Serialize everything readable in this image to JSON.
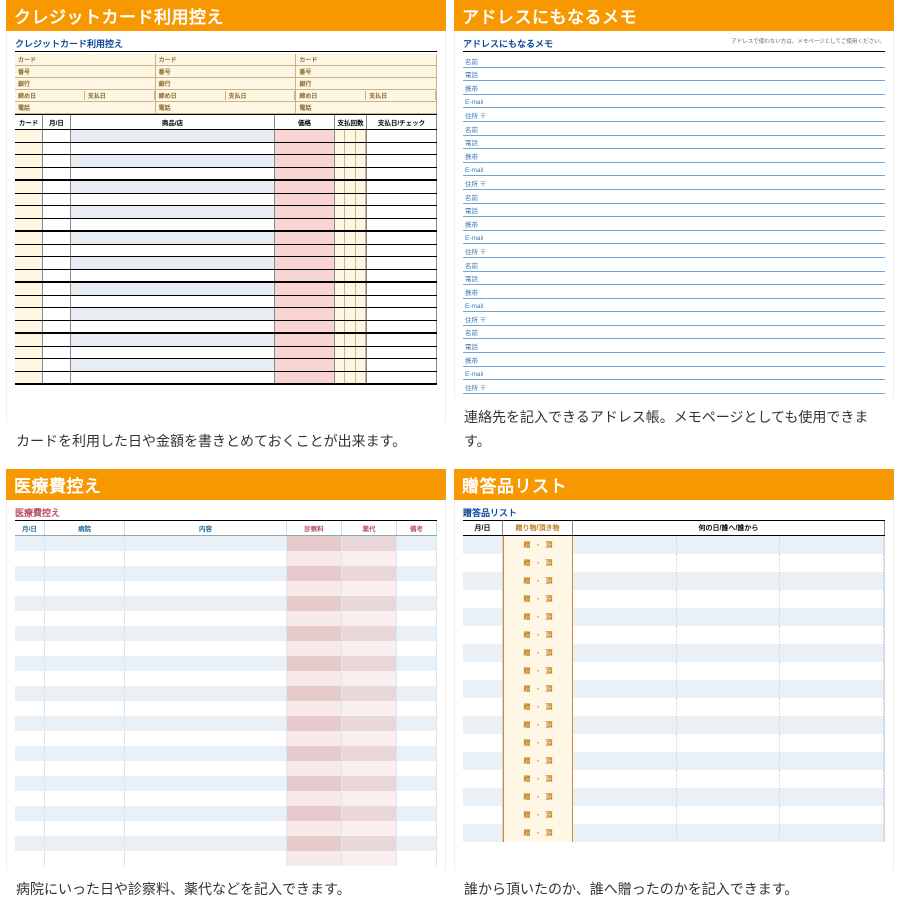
{
  "colors": {
    "accent": "#f79800",
    "blue": "#0a4a9a",
    "lineBlue": "#6fa8d8",
    "cream": "#fdf6e3",
    "ltblue": "#e8edf3",
    "pink": "#f8d5d3"
  },
  "panels": [
    {
      "title": "クレジットカード利用控え",
      "innerTitle": "クレジットカード利用控え",
      "topRows": [
        "カード",
        "番号",
        "銀行",
        "締め日　　支払日",
        "電話"
      ],
      "columns": [
        "カード",
        "月/日",
        "商品/店",
        "価格",
        "支払回数",
        "支払日/チェック"
      ],
      "rowCount": 20,
      "caption": "カードを利用した日や金額を書きとめておくことが出来ます。"
    },
    {
      "title": "アドレスにもなるメモ",
      "innerTitle": "アドレスにもなるメモ",
      "note": "アドレスで使わない方は、メモページとしてご使用ください。",
      "fields": [
        "名前",
        "電話",
        "携帯",
        "E-mail",
        "住所 〒"
      ],
      "groupCount": 5,
      "caption": "連絡先を記入できるアドレス帳。メモページとしても使用できます。"
    },
    {
      "title": "医療費控え",
      "innerTitle": "医療費控え",
      "columns": [
        "月/日",
        "病院",
        "内容",
        "診察料",
        "薬代",
        "備考"
      ],
      "rowCount": 22,
      "caption": "病院にいった日や診察料、薬代などを記入できます。"
    },
    {
      "title": "贈答品リスト",
      "innerTitle": "贈答品リスト",
      "columns": [
        "月/日",
        "贈り物/頂き物",
        "何の日/誰へ/誰から"
      ],
      "giftPair": [
        "贈",
        "頂"
      ],
      "rowCount": 17,
      "caption": "誰から頂いたのか、誰へ贈ったのかを記入できます。"
    }
  ]
}
